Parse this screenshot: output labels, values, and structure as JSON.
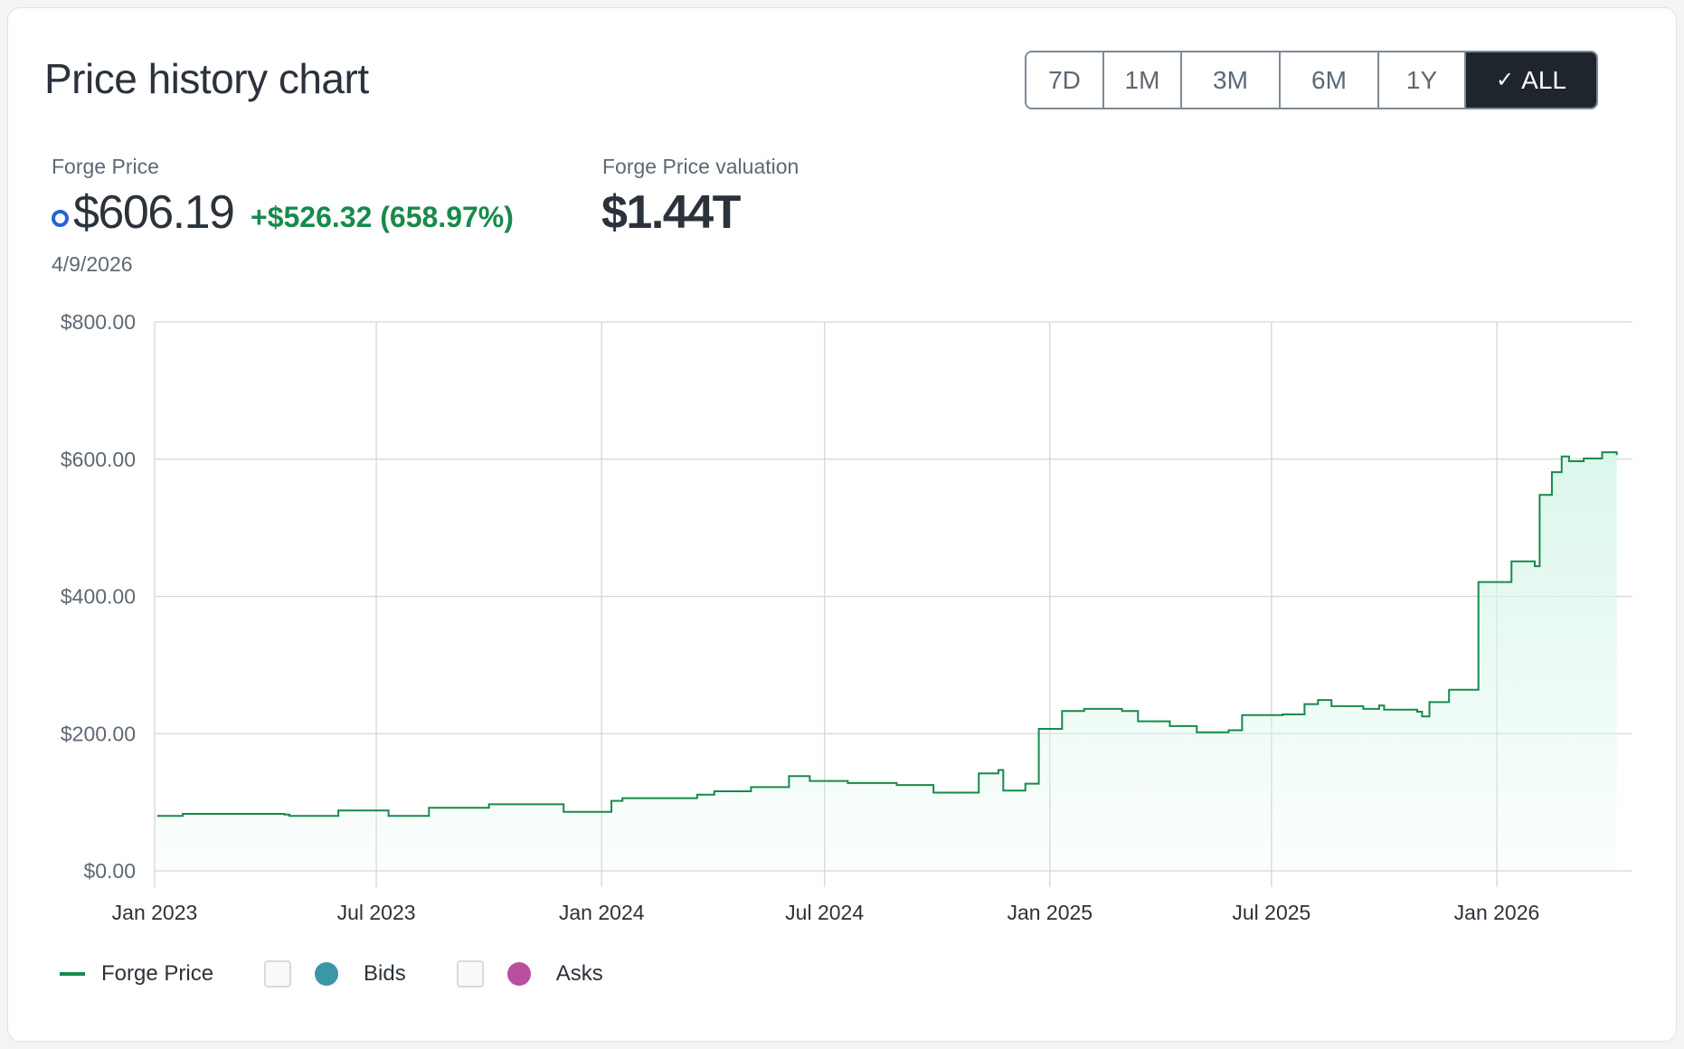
{
  "header": {
    "title": "Price history chart"
  },
  "ranges": {
    "options": [
      "7D",
      "1M",
      "3M",
      "6M",
      "1Y",
      "ALL"
    ],
    "selected": "ALL",
    "check_glyph": "✓"
  },
  "summary": {
    "price_label": "Forge Price",
    "price": "$606.19",
    "change": "+$526.32 (658.97%)",
    "date": "4/9/2026",
    "valuation_label": "Forge Price valuation",
    "valuation": "$1.44T"
  },
  "colors": {
    "line": "#178a4c",
    "fill": "#d9f6ea",
    "bids": "#3a97a6",
    "asks": "#b84f9f",
    "accent_dot": "#2563d6",
    "active_range": "#1f252c"
  },
  "legend": [
    {
      "label": "Forge Price",
      "type": "line",
      "checked": true
    },
    {
      "label": "Bids",
      "type": "checkbox",
      "checked": false
    },
    {
      "label": "Asks",
      "type": "checkbox",
      "checked": false
    }
  ],
  "chart_data": {
    "type": "area",
    "interpolation": "step",
    "grid": true,
    "legend_position": "bottom-left",
    "ylim": [
      0,
      800
    ],
    "yticks": [
      "$0.00",
      "$200.00",
      "$400.00",
      "$600.00",
      "$800.00"
    ],
    "ytick_values": [
      0,
      200,
      400,
      600,
      800
    ],
    "xticks": [
      "Jan 2023",
      "Jul 2023",
      "Jan 2024",
      "Jul 2024",
      "Jan 2025",
      "Jul 2025",
      "Jan 2026"
    ],
    "xtick_dates": [
      "2023-01-01",
      "2023-07-01",
      "2024-01-01",
      "2024-07-01",
      "2025-01-01",
      "2025-07-01",
      "2026-01-01"
    ],
    "xlim": [
      "2023-01-01",
      "2026-05-01"
    ],
    "series": [
      {
        "name": "Forge Price",
        "points": [
          [
            "2023-01-03",
            80
          ],
          [
            "2023-01-24",
            83
          ],
          [
            "2023-04-17",
            82
          ],
          [
            "2023-04-21",
            80
          ],
          [
            "2023-05-31",
            88
          ],
          [
            "2023-07-11",
            80
          ],
          [
            "2023-08-13",
            92
          ],
          [
            "2023-10-01",
            97
          ],
          [
            "2023-12-01",
            86
          ],
          [
            "2024-01-09",
            102
          ],
          [
            "2024-01-18",
            106
          ],
          [
            "2024-03-19",
            111
          ],
          [
            "2024-04-02",
            116
          ],
          [
            "2024-05-02",
            122
          ],
          [
            "2024-06-02",
            138
          ],
          [
            "2024-06-19",
            131
          ],
          [
            "2024-07-20",
            128
          ],
          [
            "2024-08-29",
            125
          ],
          [
            "2024-09-28",
            114
          ],
          [
            "2024-11-04",
            142
          ],
          [
            "2024-11-20",
            147
          ],
          [
            "2024-11-24",
            117
          ],
          [
            "2024-12-12",
            127
          ],
          [
            "2024-12-23",
            207
          ],
          [
            "2025-01-11",
            233
          ],
          [
            "2025-01-29",
            236
          ],
          [
            "2025-03-01",
            233
          ],
          [
            "2025-03-14",
            218
          ],
          [
            "2025-04-09",
            211
          ],
          [
            "2025-05-01",
            202
          ],
          [
            "2025-05-27",
            205
          ],
          [
            "2025-06-07",
            227
          ],
          [
            "2025-07-10",
            228
          ],
          [
            "2025-07-28",
            243
          ],
          [
            "2025-08-08",
            249
          ],
          [
            "2025-08-19",
            240
          ],
          [
            "2025-09-14",
            236
          ],
          [
            "2025-09-27",
            241
          ],
          [
            "2025-10-01",
            235
          ],
          [
            "2025-10-28",
            232
          ],
          [
            "2025-11-01",
            225
          ],
          [
            "2025-11-07",
            246
          ],
          [
            "2025-11-23",
            264
          ],
          [
            "2025-12-12",
            264
          ],
          [
            "2025-12-17",
            421
          ],
          [
            "2026-01-08",
            421
          ],
          [
            "2026-01-13",
            451
          ],
          [
            "2026-02-01",
            444
          ],
          [
            "2026-02-05",
            548
          ],
          [
            "2026-02-15",
            581
          ],
          [
            "2026-02-23",
            604
          ],
          [
            "2026-03-01",
            597
          ],
          [
            "2026-03-13",
            601
          ],
          [
            "2026-03-26",
            601
          ],
          [
            "2026-03-28",
            610
          ],
          [
            "2026-04-09",
            606
          ]
        ]
      }
    ]
  }
}
